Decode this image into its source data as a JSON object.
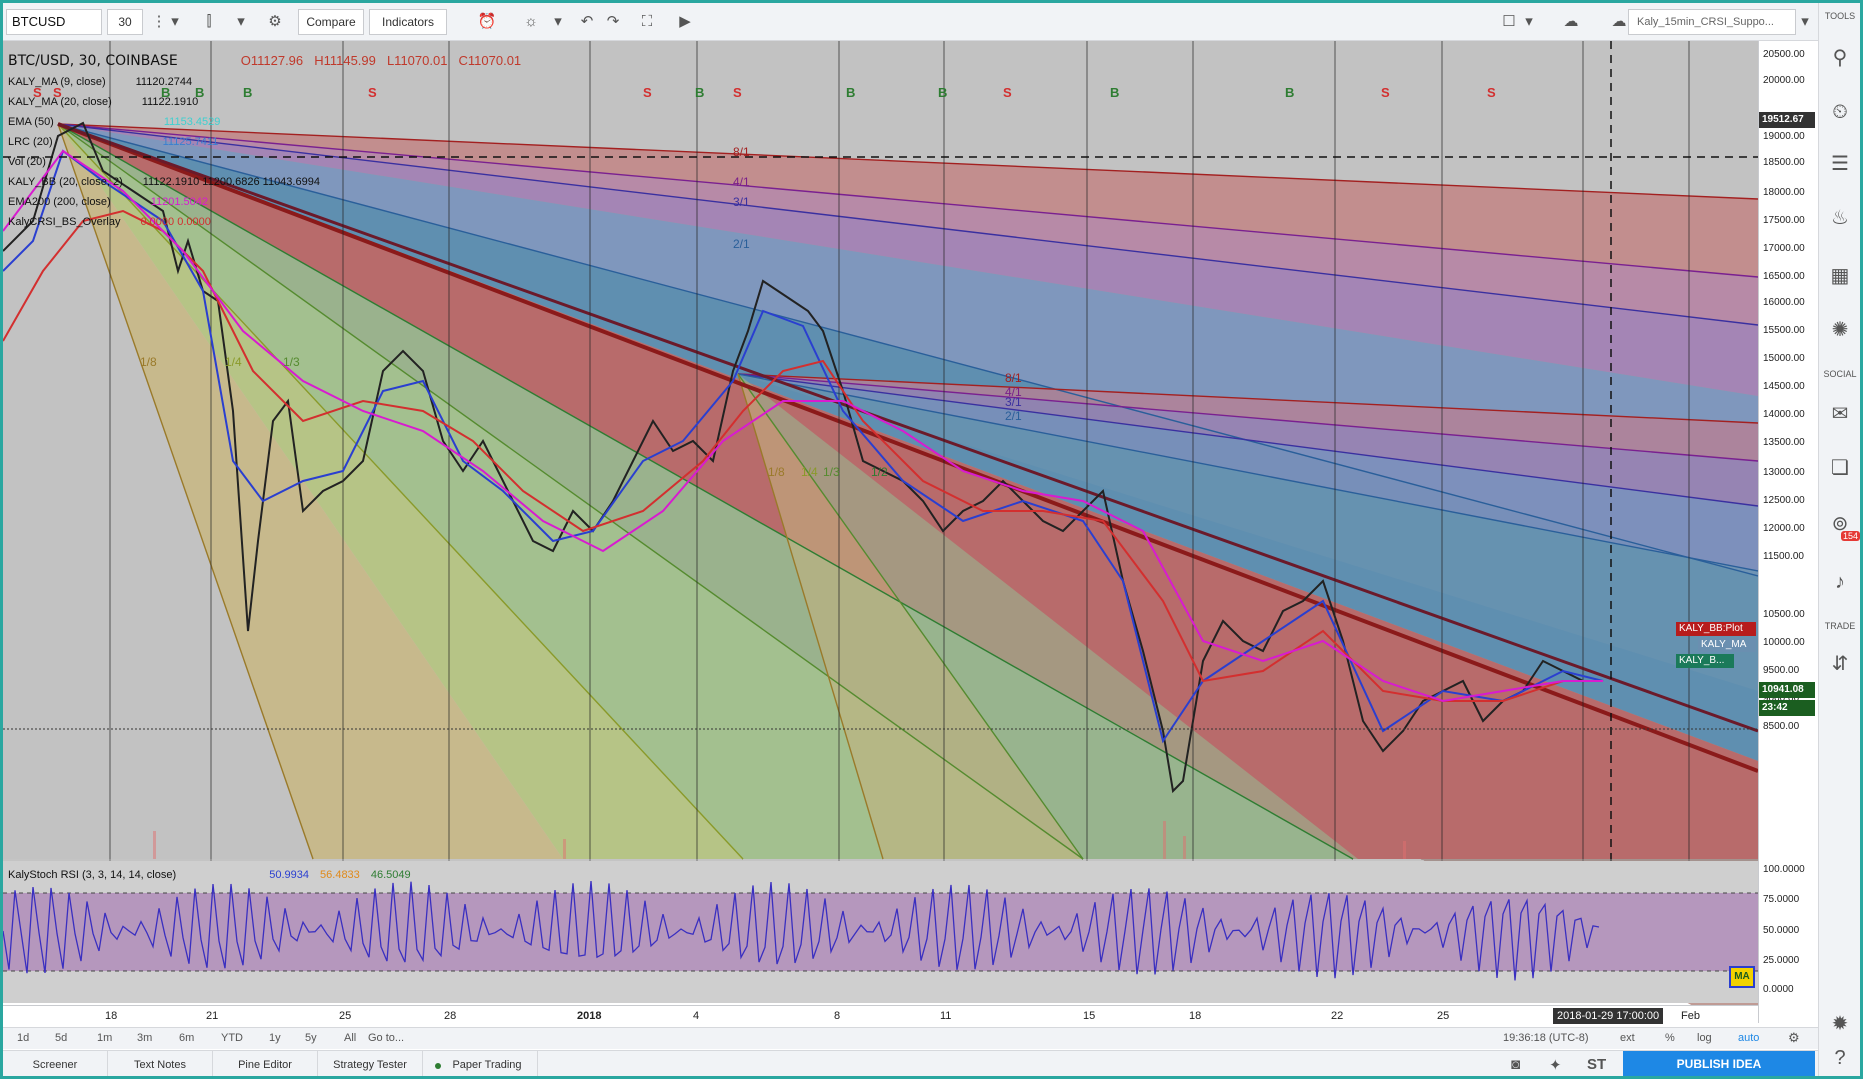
{
  "toolbar": {
    "symbol": "BTCUSD",
    "interval": "30",
    "compare_label": "Compare",
    "indicators_label": "Indicators",
    "layout_name": "Kaly_15min_CRSI_Suppo..."
  },
  "legend": {
    "title": "BTC/USD, 30, COINBASE",
    "open": "O11127.96",
    "high": "H11145.99",
    "low": "L11070.01",
    "close": "C11070.01",
    "indicators": [
      {
        "name": "KALY_MA (9, close)",
        "value": "11120.2744"
      },
      {
        "name": "KALY_MA (20, close)",
        "value": "11122.1910"
      },
      {
        "name": "EMA (50)",
        "value": "11153.4529"
      },
      {
        "name": "LRC (20)",
        "value": "11125.7411"
      },
      {
        "name": "Vol (20)",
        "value": ""
      },
      {
        "name": "KALY_BB (20, close, 2)",
        "value": "11122.1910  11200.6826  11043.6994"
      },
      {
        "name": "EMA200 (200, close)",
        "value": "11201.5042"
      },
      {
        "name": "KalyCRSI_BS_Overlay",
        "value": "0.0000  0.0000"
      }
    ]
  },
  "signals": [
    {
      "label": "S",
      "type": "sell"
    },
    {
      "label": "S",
      "type": "sell"
    },
    {
      "label": "B",
      "type": "buy"
    },
    {
      "label": "B",
      "type": "buy"
    },
    {
      "label": "B",
      "type": "buy"
    },
    {
      "label": "S",
      "type": "sell"
    },
    {
      "label": "S",
      "type": "sell"
    },
    {
      "label": "B",
      "type": "buy"
    },
    {
      "label": "S",
      "type": "sell"
    },
    {
      "label": "B",
      "type": "buy"
    },
    {
      "label": "B",
      "type": "buy"
    },
    {
      "label": "S",
      "type": "sell"
    },
    {
      "label": "B",
      "type": "buy"
    },
    {
      "label": "B",
      "type": "buy"
    },
    {
      "label": "S",
      "type": "sell"
    },
    {
      "label": "S",
      "type": "sell"
    }
  ],
  "fan_labels": {
    "big": [
      "8/1",
      "4/1",
      "3/1",
      "2/1"
    ],
    "small": [
      "8/1",
      "4/1",
      "3/1",
      "2/1"
    ],
    "lower_big": [
      "1/8",
      "1/4",
      "1/3"
    ],
    "lower_small": [
      "1/8",
      "1/4",
      "1/3",
      "1/2"
    ]
  },
  "price_axis": {
    "ticks": [
      "20500.00",
      "20000.00",
      "19000.00",
      "18500.00",
      "18000.00",
      "17500.00",
      "17000.00",
      "16500.00",
      "16000.00",
      "15500.00",
      "15000.00",
      "14500.00",
      "14000.00",
      "13500.00",
      "13000.00",
      "12500.00",
      "12000.00",
      "11500.00",
      "10500.00",
      "10000.00",
      "9500.00",
      "9000.00",
      "8500.00"
    ],
    "crosshair_price": "19512.67",
    "last_price": "10941.08",
    "countdown": "23:42",
    "tag_bb": "KALY_BB:Plot",
    "tag_ma": "KALY_MA",
    "tag_lower": "KALY_B..."
  },
  "rsi_pane": {
    "title": "KalyStoch RSI (3, 3, 14, 14, close)",
    "v1": "50.9934",
    "v2": "56.4833",
    "v3": "46.5049",
    "ticks": [
      "100.0000",
      "75.0000",
      "50.0000",
      "25.0000",
      "0.0000"
    ],
    "ma_badge": "MA"
  },
  "time_axis": {
    "ticks": [
      "18",
      "21",
      "25",
      "28",
      "2018",
      "4",
      "8",
      "11",
      "15",
      "18",
      "22",
      "25",
      "Feb"
    ],
    "cursor_time": "2018-01-29 17:00:00"
  },
  "range_bar": {
    "ranges": [
      "1d",
      "5d",
      "1m",
      "3m",
      "6m",
      "YTD",
      "1y",
      "5y",
      "All"
    ],
    "goto": "Go to...",
    "clock": "19:36:18 (UTC-8)",
    "ext": "ext",
    "pct": "%",
    "log": "log",
    "auto": "auto"
  },
  "bottom_tabs": [
    "Screener",
    "Text Notes",
    "Pine Editor",
    "Strategy Tester",
    "Paper Trading"
  ],
  "publish_label": "PUBLISH IDEA",
  "sidebar": {
    "tools_label": "TOOLS",
    "social_label": "SOCIAL",
    "trade_label": "TRADE",
    "badge": "154"
  }
}
